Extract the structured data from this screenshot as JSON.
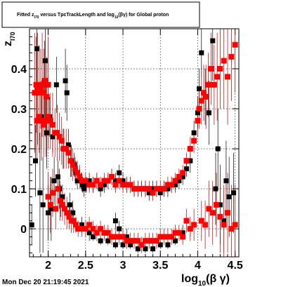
{
  "page": {
    "timestamp": "Mon Dec 20 21:19:45 2021"
  },
  "chart_data": {
    "type": "scatter",
    "title_parts": {
      "p1": "Fitted  z",
      "sub1": "I70",
      "p2": "  versus TpcTrackLength and log",
      "sub2": "10",
      "p3": "(βγ) for Global proton"
    },
    "xlabel": "log",
    "xlabel_sub": "10",
    "xlabel_tail": "(β γ)",
    "ylabel": "z",
    "ylabel_sub": "I70",
    "xlim": [
      1.75,
      4.55
    ],
    "ylim": [
      -0.07,
      0.5
    ],
    "xticks": [
      2,
      2.5,
      3,
      3.5,
      4,
      4.5
    ],
    "xtick_labels": [
      "2",
      "2.5",
      "3",
      "3.5",
      "4",
      "4.5"
    ],
    "yticks": [
      0,
      0.1,
      0.2,
      0.3,
      0.4
    ],
    "ytick_labels": [
      "0",
      "0.1",
      "0.2",
      "0.3",
      "0.4"
    ],
    "grid": true,
    "colors": {
      "black_series": "#000000",
      "red_series": "#ff0000",
      "error_bar": "#aa0000"
    },
    "series": [
      {
        "color": "black",
        "points": [
          [
            1.78,
            0.01,
            0.05
          ],
          [
            1.83,
            0.17,
            0.09
          ],
          [
            1.85,
            0.45,
            0.09
          ],
          [
            1.89,
            0.09,
            0.15
          ],
          [
            1.91,
            0.28,
            0.08
          ],
          [
            1.93,
            0.06,
            0.12
          ],
          [
            1.95,
            0.37,
            0.1
          ],
          [
            1.96,
            0.42,
            0.15
          ],
          [
            1.98,
            0.24,
            0.09
          ],
          [
            2.0,
            0.04,
            0.07
          ],
          [
            2.02,
            0.28,
            0.05
          ],
          [
            2.04,
            0.05,
            0.08
          ],
          [
            2.06,
            0.23,
            0.04
          ],
          [
            2.08,
            0.12,
            0.06
          ],
          [
            2.11,
            0.36,
            0.07
          ],
          [
            2.13,
            0.13,
            0.04
          ],
          [
            2.15,
            0.1,
            0.05
          ],
          [
            2.17,
            0.07,
            0.04
          ],
          [
            2.19,
            0.08,
            0.03
          ],
          [
            2.2,
            0.2,
            0.05
          ],
          [
            2.23,
            0.37,
            0.08
          ],
          [
            2.25,
            0.34,
            0.07
          ],
          [
            2.27,
            0.21,
            0.04
          ],
          [
            2.29,
            0.06,
            0.03
          ],
          [
            2.31,
            0.17,
            0.04
          ],
          [
            2.33,
            0.04,
            0.03
          ],
          [
            2.35,
            0.16,
            0.03
          ],
          [
            2.37,
            0.14,
            0.03
          ],
          [
            2.39,
            0.12,
            0.02
          ],
          [
            2.42,
            0.13,
            0.02
          ],
          [
            2.44,
            0.12,
            0.02
          ],
          [
            2.46,
            0.11,
            0.02
          ],
          [
            2.48,
            0.1,
            0.02
          ],
          [
            2.51,
            0.11,
            0.02
          ],
          [
            2.55,
            0.12,
            0.02
          ],
          [
            2.6,
            0.11,
            0.02
          ],
          [
            2.65,
            0.12,
            0.02
          ],
          [
            2.7,
            0.1,
            0.02
          ],
          [
            2.75,
            0.11,
            0.02
          ],
          [
            2.8,
            0.12,
            0.02
          ],
          [
            2.85,
            0.13,
            0.02
          ],
          [
            2.9,
            0.12,
            0.02
          ],
          [
            2.95,
            0.14,
            0.02
          ],
          [
            3.0,
            0.12,
            0.02
          ],
          [
            3.05,
            0.11,
            0.02
          ],
          [
            3.1,
            0.11,
            0.02
          ],
          [
            3.15,
            0.1,
            0.02
          ],
          [
            3.2,
            0.1,
            0.02
          ],
          [
            3.25,
            0.1,
            0.02
          ],
          [
            3.3,
            0.1,
            0.02
          ],
          [
            3.35,
            0.09,
            0.02
          ],
          [
            3.4,
            0.1,
            0.02
          ],
          [
            3.45,
            0.1,
            0.02
          ],
          [
            3.5,
            0.09,
            0.02
          ],
          [
            3.55,
            0.1,
            0.02
          ],
          [
            3.6,
            0.1,
            0.02
          ],
          [
            3.65,
            0.11,
            0.02
          ],
          [
            3.7,
            0.11,
            0.02
          ],
          [
            3.75,
            0.12,
            0.02
          ],
          [
            3.8,
            0.13,
            0.02
          ],
          [
            3.85,
            0.15,
            0.02
          ],
          [
            3.9,
            0.17,
            0.03
          ],
          [
            3.95,
            0.24,
            0.03
          ],
          [
            4.0,
            0.29,
            0.04
          ],
          [
            4.02,
            0.35,
            0.05
          ],
          [
            4.05,
            0.44,
            0.06
          ],
          [
            4.1,
            0.33,
            0.07
          ],
          [
            4.15,
            0.29,
            0.08
          ],
          [
            4.2,
            0.47,
            0.1
          ],
          [
            4.24,
            0.1,
            0.09
          ],
          [
            4.27,
            0.2,
            0.1
          ],
          [
            4.3,
            0.06,
            0.1
          ],
          [
            4.35,
            0.02,
            0.08
          ],
          [
            4.38,
            0.12,
            0.1
          ],
          [
            4.42,
            0.08,
            0.1
          ],
          [
            4.48,
            0.09,
            0.1
          ],
          [
            2.45,
            0.01,
            0.02
          ],
          [
            2.55,
            -0.01,
            0.02
          ],
          [
            2.6,
            -0.02,
            0.01
          ],
          [
            2.7,
            -0.03,
            0.01
          ],
          [
            2.8,
            -0.03,
            0.01
          ],
          [
            2.9,
            -0.04,
            0.01
          ],
          [
            3.0,
            -0.04,
            0.01
          ],
          [
            3.1,
            -0.04,
            0.01
          ],
          [
            3.2,
            -0.05,
            0.01
          ],
          [
            3.3,
            -0.05,
            0.01
          ],
          [
            3.4,
            -0.05,
            0.01
          ],
          [
            3.5,
            -0.04,
            0.01
          ],
          [
            3.6,
            -0.04,
            0.01
          ],
          [
            3.7,
            -0.03,
            0.01
          ],
          [
            3.8,
            -0.01,
            0.02
          ],
          [
            3.9,
            0.0,
            0.02
          ],
          [
            2.9,
            0.02,
            0.02
          ],
          [
            2.95,
            0.0,
            0.02
          ],
          [
            3.05,
            -0.02,
            0.02
          ]
        ]
      },
      {
        "color": "red",
        "points": [
          [
            1.82,
            0.34,
            0.15
          ],
          [
            1.84,
            0.36,
            0.12
          ],
          [
            1.86,
            0.35,
            0.14
          ],
          [
            1.88,
            0.34,
            0.12
          ],
          [
            1.9,
            0.35,
            0.1
          ],
          [
            1.92,
            0.36,
            0.13
          ],
          [
            1.94,
            0.34,
            0.11
          ],
          [
            1.96,
            0.37,
            0.14
          ],
          [
            1.98,
            0.33,
            0.1
          ],
          [
            2.0,
            0.36,
            0.12
          ],
          [
            1.85,
            0.27,
            0.1
          ],
          [
            1.88,
            0.28,
            0.09
          ],
          [
            1.91,
            0.27,
            0.1
          ],
          [
            1.94,
            0.26,
            0.08
          ],
          [
            1.97,
            0.27,
            0.09
          ],
          [
            2.0,
            0.28,
            0.08
          ],
          [
            2.03,
            0.27,
            0.07
          ],
          [
            2.06,
            0.26,
            0.08
          ],
          [
            2.09,
            0.24,
            0.06
          ],
          [
            2.12,
            0.24,
            0.07
          ],
          [
            2.15,
            0.23,
            0.06
          ],
          [
            2.18,
            0.22,
            0.06
          ],
          [
            2.21,
            0.2,
            0.05
          ],
          [
            2.24,
            0.2,
            0.05
          ],
          [
            2.27,
            0.19,
            0.04
          ],
          [
            2.3,
            0.17,
            0.04
          ],
          [
            2.33,
            0.16,
            0.04
          ],
          [
            2.36,
            0.15,
            0.03
          ],
          [
            2.39,
            0.14,
            0.03
          ],
          [
            2.42,
            0.13,
            0.03
          ],
          [
            2.45,
            0.12,
            0.02
          ],
          [
            2.5,
            0.12,
            0.02
          ],
          [
            2.55,
            0.11,
            0.02
          ],
          [
            2.6,
            0.11,
            0.02
          ],
          [
            2.65,
            0.12,
            0.02
          ],
          [
            2.7,
            0.11,
            0.02
          ],
          [
            2.75,
            0.12,
            0.02
          ],
          [
            2.8,
            0.12,
            0.02
          ],
          [
            2.85,
            0.13,
            0.02
          ],
          [
            2.9,
            0.11,
            0.02
          ],
          [
            2.95,
            0.12,
            0.02
          ],
          [
            3.0,
            0.11,
            0.02
          ],
          [
            3.05,
            0.11,
            0.02
          ],
          [
            3.1,
            0.11,
            0.02
          ],
          [
            3.15,
            0.1,
            0.02
          ],
          [
            3.2,
            0.1,
            0.02
          ],
          [
            3.25,
            0.1,
            0.02
          ],
          [
            3.3,
            0.1,
            0.02
          ],
          [
            3.35,
            0.1,
            0.02
          ],
          [
            3.4,
            0.09,
            0.02
          ],
          [
            3.45,
            0.1,
            0.02
          ],
          [
            3.5,
            0.1,
            0.02
          ],
          [
            3.55,
            0.1,
            0.02
          ],
          [
            3.6,
            0.11,
            0.02
          ],
          [
            3.65,
            0.11,
            0.02
          ],
          [
            3.7,
            0.12,
            0.02
          ],
          [
            3.75,
            0.13,
            0.02
          ],
          [
            3.8,
            0.14,
            0.02
          ],
          [
            3.85,
            0.17,
            0.02
          ],
          [
            3.9,
            0.2,
            0.03
          ],
          [
            3.95,
            0.22,
            0.03
          ],
          [
            4.0,
            0.27,
            0.04
          ],
          [
            4.02,
            0.3,
            0.05
          ],
          [
            4.05,
            0.32,
            0.06
          ],
          [
            4.08,
            0.34,
            0.07
          ],
          [
            4.11,
            0.33,
            0.08
          ],
          [
            4.14,
            0.36,
            0.08
          ],
          [
            4.18,
            0.4,
            0.09
          ],
          [
            4.22,
            0.36,
            0.1
          ],
          [
            4.26,
            0.38,
            0.11
          ],
          [
            4.3,
            0.4,
            0.1
          ],
          [
            4.35,
            0.42,
            0.12
          ],
          [
            4.4,
            0.38,
            0.12
          ],
          [
            4.45,
            0.43,
            0.11
          ],
          [
            4.5,
            0.46,
            0.12
          ],
          [
            2.0,
            0.08,
            0.06
          ],
          [
            2.03,
            0.06,
            0.07
          ],
          [
            2.06,
            0.09,
            0.06
          ],
          [
            2.1,
            0.05,
            0.05
          ],
          [
            2.13,
            0.1,
            0.05
          ],
          [
            2.16,
            0.07,
            0.05
          ],
          [
            2.19,
            0.06,
            0.04
          ],
          [
            2.22,
            0.05,
            0.04
          ],
          [
            2.25,
            0.04,
            0.04
          ],
          [
            2.28,
            0.03,
            0.03
          ],
          [
            2.31,
            0.02,
            0.03
          ],
          [
            2.34,
            0.02,
            0.03
          ],
          [
            2.37,
            0.01,
            0.02
          ],
          [
            2.4,
            0.0,
            0.02
          ],
          [
            2.45,
            0.0,
            0.02
          ],
          [
            2.5,
            0.0,
            0.02
          ],
          [
            2.55,
            0.01,
            0.02
          ],
          [
            2.6,
            0.0,
            0.02
          ],
          [
            2.65,
            -0.01,
            0.02
          ],
          [
            2.7,
            0.0,
            0.02
          ],
          [
            2.75,
            -0.01,
            0.02
          ],
          [
            2.8,
            -0.01,
            0.02
          ],
          [
            2.85,
            -0.02,
            0.02
          ],
          [
            2.9,
            -0.02,
            0.02
          ],
          [
            2.95,
            -0.02,
            0.02
          ],
          [
            3.0,
            -0.02,
            0.02
          ],
          [
            3.05,
            -0.03,
            0.02
          ],
          [
            3.1,
            -0.03,
            0.02
          ],
          [
            3.15,
            -0.03,
            0.02
          ],
          [
            3.2,
            -0.03,
            0.02
          ],
          [
            3.25,
            -0.04,
            0.02
          ],
          [
            3.3,
            -0.03,
            0.02
          ],
          [
            3.35,
            -0.03,
            0.02
          ],
          [
            3.4,
            -0.03,
            0.02
          ],
          [
            3.45,
            -0.03,
            0.02
          ],
          [
            3.5,
            -0.02,
            0.02
          ],
          [
            3.55,
            -0.02,
            0.02
          ],
          [
            3.6,
            -0.02,
            0.02
          ],
          [
            3.65,
            -0.02,
            0.02
          ],
          [
            3.7,
            -0.01,
            0.02
          ],
          [
            3.75,
            -0.01,
            0.02
          ],
          [
            3.8,
            -0.02,
            0.02
          ],
          [
            3.85,
            0.02,
            0.03
          ],
          [
            3.9,
            0.0,
            0.03
          ],
          [
            3.95,
            0.01,
            0.04
          ],
          [
            4.05,
            0.02,
            0.05
          ],
          [
            4.1,
            0.01,
            0.06
          ],
          [
            4.15,
            0.05,
            0.07
          ],
          [
            4.2,
            0.04,
            0.08
          ],
          [
            4.25,
            0.06,
            0.08
          ],
          [
            4.3,
            0.03,
            0.09
          ],
          [
            4.35,
            0.01,
            0.1
          ],
          [
            4.4,
            0.04,
            0.1
          ],
          [
            4.45,
            0.0,
            0.11
          ],
          [
            4.5,
            0.01,
            0.1
          ]
        ]
      }
    ]
  }
}
